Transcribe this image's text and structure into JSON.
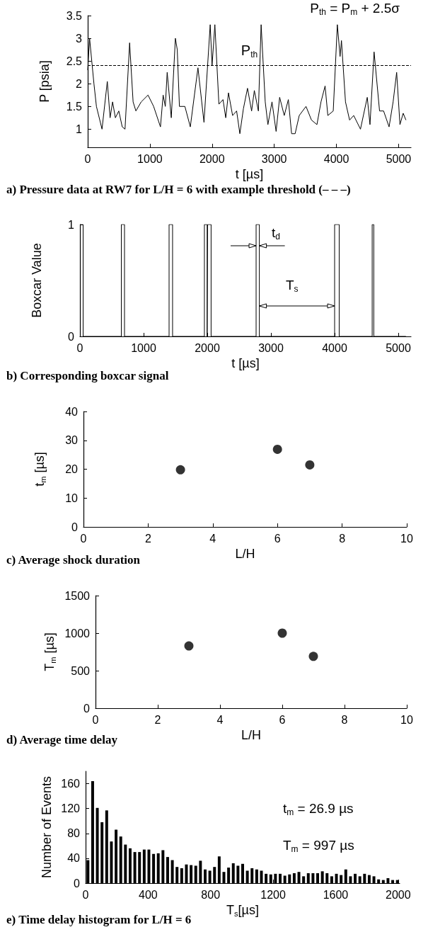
{
  "chart_data": [
    {
      "type": "line",
      "title": "a) Pressure data at RW7 for L/H = 6 with example threshold (– – –)",
      "xlabel": "t [µs]",
      "ylabel": "P [psia]",
      "marker": "none",
      "x": [
        0,
        30,
        100,
        140,
        230,
        315,
        360,
        400,
        445,
        500,
        555,
        600,
        674,
        730,
        775,
        860,
        970,
        1060,
        1170,
        1213,
        1248,
        1278,
        1344,
        1410,
        1440,
        1475,
        1563,
        1650,
        1773,
        1870,
        1970,
        2000,
        2045,
        2110,
        2176,
        2220,
        2264,
        2330,
        2395,
        2447,
        2504,
        2570,
        2636,
        2680,
        2745,
        2789,
        2855,
        2898,
        2964,
        3030,
        3087,
        3161,
        3227,
        3279,
        3336,
        3402,
        3511,
        3599,
        3687,
        3752,
        3818,
        3862,
        3949,
        4015,
        4059,
        4081,
        4146,
        4212,
        4278,
        4387,
        4496,
        4540,
        4606,
        4694,
        4759,
        4847,
        4912,
        4969,
        5022,
        5074,
        5118
      ],
      "series": [
        {
          "color": "#000000",
          "values": [
            2.3,
            3.0,
            2.0,
            1.5,
            1.0,
            2.05,
            1.25,
            1.6,
            1.25,
            1.4,
            1.05,
            1.0,
            2.9,
            1.6,
            1.4,
            1.6,
            1.75,
            1.5,
            1.05,
            1.75,
            1.5,
            2.25,
            1.25,
            3.0,
            2.75,
            1.5,
            1.5,
            1.05,
            2.35,
            1.15,
            3.3,
            2.4,
            3.3,
            1.55,
            1.65,
            1.25,
            1.8,
            1.3,
            1.4,
            0.9,
            1.45,
            1.9,
            1.4,
            1.85,
            1.4,
            3.3,
            1.6,
            1.1,
            1.6,
            0.95,
            1.7,
            1.3,
            1.65,
            0.9,
            0.9,
            1.3,
            1.5,
            1.2,
            1.1,
            1.6,
            1.95,
            1.3,
            1.4,
            3.3,
            2.6,
            2.95,
            1.6,
            1.2,
            1.3,
            1.0,
            1.7,
            1.1,
            2.7,
            1.4,
            1.4,
            1.05,
            1.6,
            2.25,
            1.1,
            1.35,
            1.2
          ]
        }
      ],
      "xlim": [
        0,
        5200
      ],
      "xticks": [
        0,
        1000,
        2000,
        3000,
        4000,
        5000
      ],
      "ylim": [
        0.6,
        3.5
      ],
      "yticks": [
        1,
        1.5,
        2,
        2.5,
        3,
        3.5
      ],
      "ref_lines": [
        {
          "axis": "y",
          "value": 2.4,
          "label": "P$_{th}$",
          "line_style": "dashed",
          "color": "#000000"
        }
      ],
      "annotations": [
        "P$_{th}$ = P$_{m}$ + 2.5σ"
      ]
    },
    {
      "type": "step",
      "title": "b) Corresponding boxcar signal",
      "xlabel": "t [µs]",
      "ylabel": "Boxcar Value",
      "marker": "none",
      "x": [
        0,
        50,
        650,
        700,
        1400,
        1455,
        1955,
        1998,
        2005,
        2060,
        2767,
        2818,
        4000,
        4072,
        4590,
        4615,
        5120
      ],
      "series": [
        {
          "color": "#000000",
          "values": [
            1,
            0,
            1,
            0,
            1,
            0,
            1,
            0,
            1,
            0,
            1,
            0,
            1,
            0,
            1,
            0,
            0
          ]
        }
      ],
      "xlim": [
        0,
        5200
      ],
      "xticks": [
        0,
        1000,
        2000,
        3000,
        4000,
        5000
      ],
      "ylim": [
        0,
        1
      ],
      "yticks": [
        0,
        1
      ],
      "annotations": [
        "t$_{d}$",
        "T$_{s}$"
      ]
    },
    {
      "type": "scatter",
      "title": "c) Average shock duration",
      "xlabel": "L/H",
      "ylabel": "t$_{m}$ [µs]",
      "marker": "circle",
      "x": [
        3,
        6,
        7
      ],
      "series": [
        {
          "color": "#000000",
          "values": [
            19.8,
            26.9,
            21.5
          ]
        }
      ],
      "xlim": [
        0,
        10
      ],
      "xticks": [
        0,
        2,
        4,
        6,
        8,
        10
      ],
      "ylim": [
        0,
        40
      ],
      "yticks": [
        0,
        10,
        20,
        30,
        40
      ]
    },
    {
      "type": "scatter",
      "title": "d) Average time delay",
      "xlabel": "L/H",
      "ylabel": "T$_{m}$ [µs]",
      "marker": "circle",
      "x": [
        3,
        6,
        7
      ],
      "series": [
        {
          "color": "#000000",
          "values": [
            830,
            1000,
            690
          ]
        }
      ],
      "xlim": [
        0,
        10
      ],
      "xticks": [
        0,
        2,
        4,
        6,
        8,
        10
      ],
      "ylim": [
        0,
        1500
      ],
      "yticks": [
        0,
        500,
        1000,
        1500
      ]
    },
    {
      "type": "histogram",
      "title": "e) Time delay histogram for L/H = 6",
      "xlabel": "T$_{s}$[µs]",
      "ylabel": "Number of Events",
      "color": "#000000",
      "bins": [
        0,
        30,
        60,
        90,
        120,
        150,
        180,
        210,
        240,
        270,
        300,
        330,
        360,
        390,
        420,
        450,
        480,
        510,
        540,
        570,
        600,
        630,
        660,
        690,
        720,
        750,
        780,
        810,
        840,
        870,
        900,
        930,
        960,
        990,
        1020,
        1050,
        1080,
        1110,
        1140,
        1170,
        1200,
        1230,
        1260,
        1290,
        1320,
        1350,
        1380,
        1410,
        1440,
        1470,
        1500,
        1530,
        1560,
        1590,
        1620,
        1650,
        1680,
        1710,
        1740,
        1770,
        1800,
        1830,
        1860,
        1890,
        1920,
        1950,
        1980,
        2010
      ],
      "values": [
        37,
        164,
        121,
        98,
        117,
        67,
        86,
        75,
        62,
        56,
        50,
        50,
        54,
        54,
        47,
        48,
        53,
        42,
        37,
        26,
        24,
        30,
        29,
        28,
        36,
        22,
        20,
        26,
        43,
        18,
        25,
        32,
        28,
        31,
        20,
        24,
        22,
        20,
        15,
        14,
        15,
        15,
        12,
        14,
        16,
        18,
        11,
        16,
        16,
        16,
        19,
        16,
        11,
        15,
        13,
        22,
        11,
        15,
        11,
        15,
        13,
        11,
        6,
        5,
        8,
        5,
        5
      ],
      "xlim": [
        0,
        2010
      ],
      "xticks": [
        0,
        400,
        800,
        1200,
        1600,
        2000
      ],
      "ylim": [
        0,
        180
      ],
      "yticks": [
        0,
        40,
        80,
        120,
        160
      ],
      "annotations": [
        "t$_{m}$ = 26.9 µs",
        "T$_{m}$ = 997 µs"
      ]
    }
  ]
}
